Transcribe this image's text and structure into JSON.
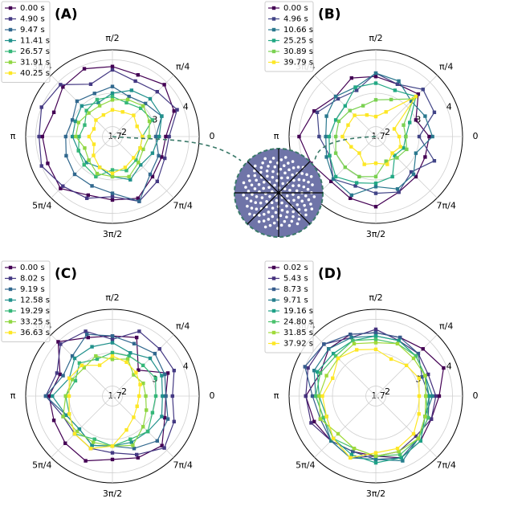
{
  "chart_data": [
    {
      "type": "radar",
      "panel_label": "(A)",
      "x": [
        0,
        0.125,
        0.25,
        0.375,
        0.5,
        0.625,
        0.75,
        0.875,
        1,
        1.125,
        1.25,
        1.375,
        1.5,
        1.625,
        1.75,
        1.875
      ],
      "xticks": [
        0,
        {
          "value": 0.25,
          "label": "π/4"
        },
        {
          "value": 0.5,
          "label": "π/2"
        },
        {
          "value": 0.75,
          "label": "3π/4"
        },
        {
          "value": 1,
          "label": "π"
        },
        {
          "value": 1.25,
          "label": "5π/4"
        },
        {
          "value": 1.5,
          "label": "3π/2"
        },
        {
          "value": 1.75,
          "label": "7π/4"
        }
      ],
      "ylim": [
        1.7,
        4.3
      ],
      "yticks": [
        1.7,
        2,
        3,
        4
      ],
      "grid": true,
      "legend": "upper left",
      "series": [
        {
          "name": "0.00 s",
          "color": "#440154",
          "values": [
            3.3,
            3.7,
            3.9,
            3.7,
            3.8,
            3.9,
            3.8,
            3.6,
            3.8,
            3.8,
            3.9,
            3.6,
            3.6,
            3.7,
            3.4,
            3.3
          ]
        },
        {
          "name": "4.90 s",
          "color": "#443983",
          "values": [
            3.4,
            3.8,
            3.6,
            3.5,
            3.7,
            3.4,
            3.9,
            4.0,
            3.9,
            4.0,
            3.8,
            3.7,
            3.5,
            3.8,
            3.6,
            3.4
          ]
        },
        {
          "name": "9.47 s",
          "color": "#31688e",
          "values": [
            3.0,
            3.3,
            3.1,
            3.0,
            3.2,
            3.1,
            3.2,
            3.0,
            3.1,
            3.2,
            3.3,
            3.3,
            3.4,
            3.8,
            3.3,
            3.2
          ]
        },
        {
          "name": "11.41 s",
          "color": "#21918c",
          "values": [
            3.1,
            3.3,
            3.3,
            3.2,
            3.0,
            2.8,
            3.0,
            2.9,
            2.9,
            2.8,
            2.8,
            2.7,
            2.9,
            3.1,
            2.9,
            3.0
          ]
        },
        {
          "name": "26.57 s",
          "color": "#35b779",
          "values": [
            2.6,
            3.0,
            2.9,
            2.8,
            2.9,
            2.9,
            2.8,
            2.6,
            2.7,
            2.8,
            2.9,
            3.0,
            2.7,
            2.8,
            2.7,
            2.6
          ]
        },
        {
          "name": "31.91 s",
          "color": "#90d743",
          "values": [
            2.8,
            2.9,
            3.0,
            2.9,
            2.8,
            2.7,
            2.7,
            2.8,
            2.8,
            2.6,
            2.7,
            2.9,
            2.9,
            3.0,
            2.8,
            2.7
          ]
        },
        {
          "name": "40.25 s",
          "color": "#fde725",
          "values": [
            2.6,
            2.5,
            2.6,
            2.5,
            2.5,
            2.4,
            2.4,
            2.3,
            2.4,
            2.3,
            2.5,
            2.7,
            2.8,
            2.7,
            2.6,
            2.6
          ]
        }
      ]
    },
    {
      "type": "radar",
      "panel_label": "(B)",
      "x": [
        0,
        0.125,
        0.25,
        0.375,
        0.5,
        0.625,
        0.75,
        0.875,
        1,
        1.125,
        1.25,
        1.375,
        1.5,
        1.625,
        1.75,
        1.875
      ],
      "xticks": [
        0,
        {
          "value": 0.25,
          "label": "π/4"
        },
        {
          "value": 0.5,
          "label": "π/2"
        },
        {
          "value": 0.75,
          "label": "3π/4"
        },
        {
          "value": 1,
          "label": "π"
        },
        {
          "value": 1.25,
          "label": "5π/4"
        },
        {
          "value": 1.5,
          "label": "3π/2"
        },
        {
          "value": 1.75,
          "label": "7π/4"
        }
      ],
      "ylim": [
        1.7,
        4.3
      ],
      "yticks": [
        1.7,
        2,
        3,
        4
      ],
      "grid": true,
      "legend": "upper left",
      "series": [
        {
          "name": "0.00 s",
          "color": "#440154",
          "values": [
            3.3,
            3.0,
            3.5,
            3.4,
            3.5,
            3.6,
            3.4,
            3.7,
            4.0,
            3.8,
            3.6,
            3.7,
            3.8,
            3.5,
            3.4,
            3.3
          ]
        },
        {
          "name": "4.96 s",
          "color": "#414487",
          "values": [
            3.0,
            3.6,
            3.7,
            3.4,
            3.6,
            3.2,
            3.3,
            3.6,
            3.4,
            3.2,
            3.5,
            3.3,
            3.4,
            3.5,
            3.2,
            3.6
          ]
        },
        {
          "name": "10.66 s",
          "color": "#2a788e",
          "values": [
            3.4,
            3.3,
            3.2,
            3.5,
            3.6,
            3.3,
            3.4,
            3.3,
            3.2,
            3.3,
            3.5,
            3.6,
            3.2,
            3.4,
            3.3,
            3.0
          ]
        },
        {
          "name": "25.25 s",
          "color": "#22a884",
          "values": [
            2.6,
            2.8,
            3.4,
            3.2,
            3.3,
            3.3,
            3.0,
            3.0,
            3.1,
            3.2,
            3.4,
            3.2,
            3.1,
            3.0,
            2.5,
            2.6
          ]
        },
        {
          "name": "30.89 s",
          "color": "#7ad151",
          "values": [
            2.6,
            2.6,
            3.3,
            2.9,
            2.8,
            2.7,
            2.8,
            2.9,
            2.9,
            3.0,
            3.0,
            3.0,
            2.9,
            2.5,
            2.6,
            2.7
          ]
        },
        {
          "name": "39.79 s",
          "color": "#fde725",
          "values": [
            2.4,
            2.3,
            3.4,
            2.5,
            2.3,
            2.4,
            2.6,
            2.6,
            2.7,
            2.5,
            2.4,
            2.6,
            2.5,
            2.6,
            2.4,
            2.5
          ]
        }
      ]
    },
    {
      "type": "radar",
      "panel_label": "(C)",
      "x": [
        0,
        0.125,
        0.25,
        0.375,
        0.5,
        0.625,
        0.75,
        0.875,
        1,
        1.125,
        1.25,
        1.375,
        1.5,
        1.625,
        1.75,
        1.875
      ],
      "xticks": [
        0,
        {
          "value": 0.25,
          "label": "π/4"
        },
        {
          "value": 0.5,
          "label": "π/2"
        },
        {
          "value": 0.75,
          "label": "3π/4"
        },
        {
          "value": 1,
          "label": "π"
        },
        {
          "value": 1.25,
          "label": "5π/4"
        },
        {
          "value": 1.5,
          "label": "3π/2"
        },
        {
          "value": 1.75,
          "label": "7π/4"
        }
      ],
      "ylim": [
        1.7,
        4.3
      ],
      "yticks": [
        1.7,
        2,
        3,
        4
      ],
      "grid": true,
      "legend": "upper left",
      "series": [
        {
          "name": "0.00 s",
          "color": "#440154",
          "values": [
            3.3,
            3.5,
            2.8,
            3.6,
            3.5,
            3.6,
            4.0,
            3.4,
            3.6,
            3.6,
            3.7,
            3.8,
            3.6,
            3.7,
            3.8,
            3.4
          ]
        },
        {
          "name": "8.02 s",
          "color": "#443983",
          "values": [
            3.5,
            3.7,
            3.7,
            3.8,
            3.4,
            3.8,
            3.9,
            3.5,
            3.7,
            3.3,
            3.3,
            3.4,
            3.4,
            3.6,
            3.9,
            3.7
          ]
        },
        {
          "name": "9.19 s",
          "color": "#31688e",
          "values": [
            3.3,
            3.4,
            3.5,
            3.4,
            3.5,
            3.7,
            3.4,
            3.3,
            3.7,
            3.2,
            3.1,
            3.3,
            3.2,
            3.4,
            3.6,
            3.5
          ]
        },
        {
          "name": "12.58 s",
          "color": "#21918c",
          "values": [
            3.2,
            3.3,
            3.3,
            3.1,
            3.3,
            3.3,
            3.3,
            3.1,
            3.5,
            3.2,
            3.1,
            3.3,
            3.2,
            3.2,
            3.2,
            3.3
          ]
        },
        {
          "name": "19.29 s",
          "color": "#35b779",
          "values": [
            3.0,
            3.1,
            3.0,
            3.0,
            3.0,
            2.9,
            3.1,
            2.9,
            3.1,
            3.1,
            3.3,
            3.1,
            3.2,
            3.1,
            3.2,
            3.0
          ]
        },
        {
          "name": "33.25 s",
          "color": "#90d743",
          "values": [
            2.7,
            2.7,
            2.6,
            2.9,
            2.8,
            3.0,
            2.9,
            3.0,
            3.1,
            3.3,
            3.2,
            3.2,
            3.2,
            3.3,
            3.0,
            2.8
          ]
        },
        {
          "name": "36.63 s",
          "color": "#fde725",
          "values": [
            2.5,
            2.6,
            2.7,
            2.8,
            2.9,
            2.7,
            3.0,
            3.1,
            3.0,
            3.1,
            3.3,
            3.4,
            3.2,
            2.8,
            2.6,
            2.5
          ]
        }
      ]
    },
    {
      "type": "radar",
      "panel_label": "(D)",
      "x": [
        0,
        0.125,
        0.25,
        0.375,
        0.5,
        0.625,
        0.75,
        0.875,
        1,
        1.125,
        1.25,
        1.375,
        1.5,
        1.625,
        1.75,
        1.875
      ],
      "xticks": [
        0,
        {
          "value": 0.25,
          "label": "π/4"
        },
        {
          "value": 0.5,
          "label": "π/2"
        },
        {
          "value": 0.75,
          "label": "3π/4"
        },
        {
          "value": 1,
          "label": "π"
        },
        {
          "value": 1.25,
          "label": "5π/4"
        },
        {
          "value": 1.5,
          "label": "3π/2"
        },
        {
          "value": 1.75,
          "label": "7π/4"
        }
      ],
      "ylim": [
        1.7,
        4.3
      ],
      "yticks": [
        1.7,
        2,
        3,
        4
      ],
      "grid": true,
      "legend": "upper left",
      "series": [
        {
          "name": "0.02 s",
          "color": "#440154",
          "values": [
            3.6,
            3.9,
            3.7,
            3.6,
            3.6,
            3.7,
            3.7,
            3.5,
            3.8,
            3.7,
            3.6,
            3.5,
            3.5,
            3.7,
            3.6,
            3.5
          ]
        },
        {
          "name": "5.43 s",
          "color": "#46327e",
          "values": [
            3.5,
            3.4,
            3.5,
            3.5,
            3.7,
            3.6,
            3.9,
            3.9,
            3.8,
            3.8,
            3.6,
            3.7,
            3.5,
            3.5,
            3.4,
            3.5
          ]
        },
        {
          "name": "8.73 s",
          "color": "#365c8d",
          "values": [
            3.3,
            3.2,
            3.5,
            3.6,
            3.6,
            3.7,
            3.9,
            4.0,
            3.6,
            3.5,
            3.6,
            3.5,
            3.6,
            3.7,
            3.5,
            3.4
          ]
        },
        {
          "name": "9.71 s",
          "color": "#277f8e",
          "values": [
            3.4,
            3.3,
            3.4,
            3.5,
            3.5,
            3.6,
            3.7,
            3.7,
            3.5,
            3.4,
            3.6,
            3.7,
            3.6,
            3.8,
            3.5,
            3.3
          ]
        },
        {
          "name": "19.16 s",
          "color": "#1fa187",
          "values": [
            3.3,
            3.3,
            3.4,
            3.5,
            3.5,
            3.5,
            3.5,
            3.6,
            3.4,
            3.3,
            3.5,
            3.6,
            3.7,
            3.7,
            3.6,
            3.3
          ]
        },
        {
          "name": "24.80 s",
          "color": "#4ac16d",
          "values": [
            3.2,
            3.3,
            3.4,
            3.4,
            3.4,
            3.5,
            3.4,
            3.5,
            3.5,
            3.4,
            3.5,
            3.4,
            3.5,
            3.6,
            3.5,
            3.4
          ]
        },
        {
          "name": "31.85 s",
          "color": "#a0da39",
          "values": [
            3.2,
            3.3,
            3.3,
            3.4,
            3.3,
            3.4,
            3.3,
            3.3,
            3.4,
            3.5,
            3.3,
            3.4,
            3.5,
            3.5,
            3.5,
            3.3
          ]
        },
        {
          "name": "37.92 s",
          "color": "#fde725",
          "values": [
            3.0,
            3.1,
            3.0,
            2.9,
            3.1,
            3.2,
            3.3,
            3.1,
            3.3,
            3.3,
            3.5,
            3.7,
            3.4,
            3.4,
            3.3,
            3.1
          ]
        }
      ]
    }
  ]
}
